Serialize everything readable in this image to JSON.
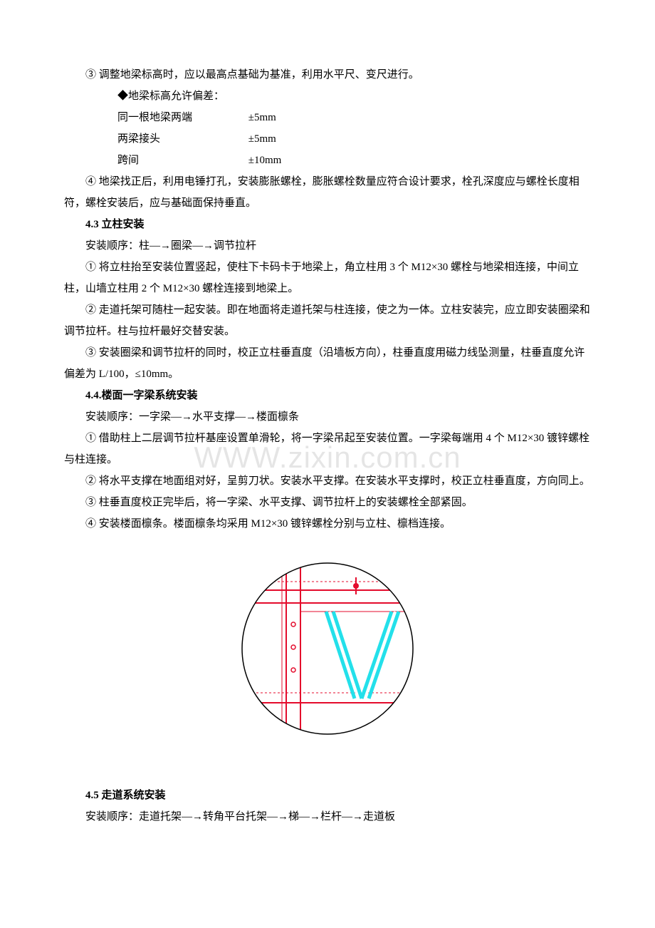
{
  "p3": "③ 调整地梁标高时，应以最高点基础为基准，利用水平尺、变尺进行。",
  "tol_title": "◆地梁标高允许偏差：",
  "tol": [
    {
      "label": "同一根地梁两端",
      "value": "±5mm"
    },
    {
      "label": "两梁接头",
      "value": "±5mm"
    },
    {
      "label": "跨间",
      "value": "±10mm"
    }
  ],
  "p4": "④ 地梁找正后，利用电锤打孔，安装膨胀螺栓，膨胀螺栓数量应符合设计要求，栓孔深度应与螺栓长度相符，螺栓安装后，应与基础面保持垂直。",
  "s43_title": "4.3 立柱安装",
  "s43_order": "安装顺序：柱—→圈梁—→调节拉杆",
  "s43_1": "① 将立柱抬至安装位置竖起，使柱下卡码卡于地梁上，角立柱用 3 个 M12×30 螺栓与地梁相连接，中间立柱，山墙立柱用 2 个 M12×30 螺栓连接到地梁上。",
  "s43_2": "② 走道托架可随柱一起安装。即在地面将走道托架与柱连接，使之为一体。立柱安装完，应立即安装圈梁和调节拉杆。柱与拉杆最好交替安装。",
  "s43_3": "③ 安装圈梁和调节拉杆的同时，校正立柱垂直度（沿墙板方向），柱垂直度用磁力线坠测量，柱垂直度允许偏差为 L/100，≤10mm。",
  "s44_title": "4.4.楼面一字梁系统安装",
  "s44_order": "安装顺序：一字梁—→水平支撑—→楼面檩条",
  "s44_1": "① 借助柱上二层调节拉杆基座设置单滑轮，将一字梁吊起至安装位置。一字梁每端用 4 个 M12×30 镀锌螺栓与柱连接。",
  "s44_2": "② 将水平支撑在地面组对好，呈剪刀状。安装水平支撑。在安装水平支撑时，校正立柱垂直度，方向同上。",
  "s44_3": "③ 柱垂直度校正完毕后，将一字梁、水平支撑、调节拉杆上的安装螺栓全部紧固。",
  "s44_4": "④ 安装楼面檩条。楼面檩条均采用 M12×30 镀锌螺栓分别与立柱、檩档连接。",
  "s45_title": "4.5 走道系统安装",
  "s45_order": "安装顺序：走道托架—→转角平台托架—→梯—→栏杆—→走道板",
  "watermark": "WWW.zixin.com.cn",
  "diagram": {
    "radius": 120,
    "stroke": "#000000",
    "stroke_w": 1.5,
    "red": "#e40b2c",
    "cyan": "#23e0ea",
    "bg": "#ffffff"
  }
}
